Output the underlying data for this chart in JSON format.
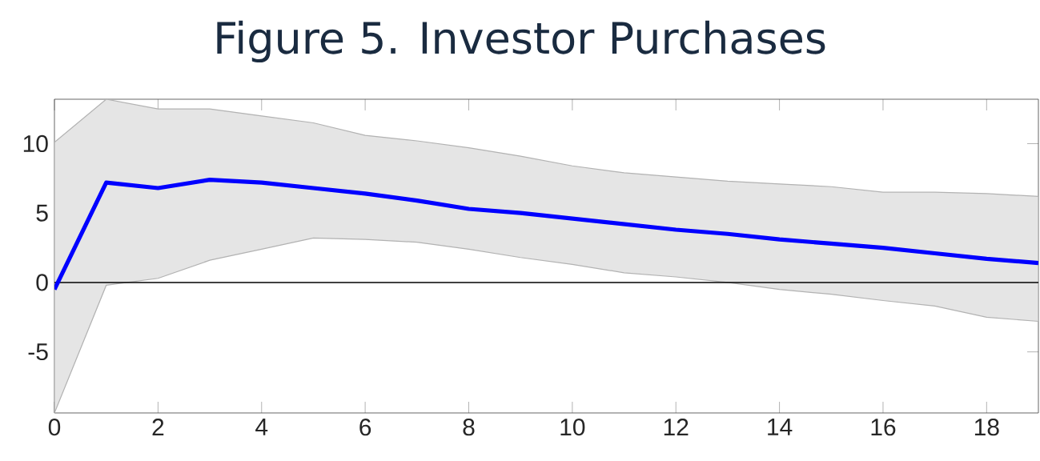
{
  "chart_data": {
    "type": "line",
    "title": "Figure 5. Investor Purchases",
    "x": [
      0,
      1,
      2,
      3,
      4,
      5,
      6,
      7,
      8,
      9,
      10,
      11,
      12,
      13,
      14,
      15,
      16,
      17,
      18,
      19
    ],
    "series": [
      {
        "color": "#0000ff",
        "values": [
          -0.5,
          7.2,
          6.8,
          7.4,
          7.2,
          6.8,
          6.4,
          5.9,
          5.3,
          5.0,
          4.6,
          4.2,
          3.8,
          3.5,
          3.1,
          2.8,
          2.5,
          2.1,
          1.7,
          1.4
        ],
        "upper": [
          10.1,
          13.2,
          12.5,
          12.5,
          12.0,
          11.5,
          10.6,
          10.2,
          9.7,
          9.1,
          8.4,
          7.9,
          7.6,
          7.3,
          7.1,
          6.9,
          6.5,
          6.5,
          6.4,
          6.2
        ],
        "lower": [
          -9.4,
          -0.2,
          0.3,
          1.6,
          2.4,
          3.2,
          3.1,
          2.9,
          2.4,
          1.8,
          1.3,
          0.7,
          0.4,
          0.0,
          -0.5,
          -0.85,
          -1.3,
          -1.7,
          -2.5,
          -2.8
        ]
      }
    ],
    "xlim": [
      0,
      19
    ],
    "ylim": [
      -9.4,
      13.2
    ],
    "xticks": [
      0,
      2,
      4,
      6,
      8,
      10,
      12,
      14,
      16,
      18
    ],
    "yticks": [
      -5,
      0,
      5,
      10
    ],
    "ref_lines": [
      {
        "axis": "y",
        "value": 0,
        "color": "#000000"
      }
    ],
    "grid": false,
    "marker": "none",
    "line_style": "solid"
  }
}
